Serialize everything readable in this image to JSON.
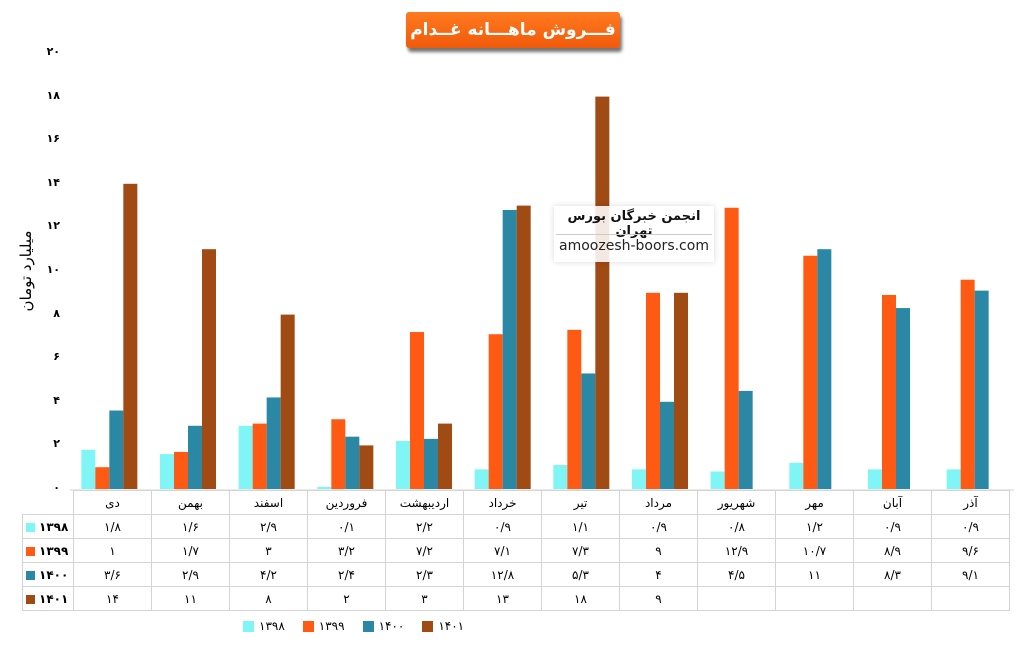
{
  "chart_data": {
    "type": "bar",
    "title": "فـــروش ماهـــانه غــدام",
    "ylabel": "میلیارد تومان",
    "ylim": [
      0,
      20
    ],
    "yticks": [
      "۰",
      "۲",
      "۴",
      "۶",
      "۸",
      "۱۰",
      "۱۲",
      "۱۴",
      "۱۶",
      "۱۸",
      "۲۰"
    ],
    "categories": [
      "دی",
      "بهمن",
      "اسفند",
      "فروردین",
      "اردیبهشت",
      "خرداد",
      "تیر",
      "مرداد",
      "شهریور",
      "مهر",
      "آبان",
      "آذر"
    ],
    "series": [
      {
        "name": "۱۳۹۸",
        "color": "#7ff5f5",
        "values": [
          1.8,
          1.6,
          2.9,
          0.1,
          2.2,
          0.9,
          1.1,
          0.9,
          0.8,
          1.2,
          0.9,
          0.9
        ],
        "labels": [
          "۱/۸",
          "۱/۶",
          "۲/۹",
          "۰/۱",
          "۲/۲",
          "۰/۹",
          "۱/۱",
          "۰/۹",
          "۰/۸",
          "۱/۲",
          "۰/۹",
          "۰/۹"
        ]
      },
      {
        "name": "۱۳۹۹",
        "color": "#ff5a14",
        "values": [
          1,
          1.7,
          3,
          3.2,
          7.2,
          7.1,
          7.3,
          9,
          12.9,
          10.7,
          8.9,
          9.6
        ],
        "labels": [
          "۱",
          "۱/۷",
          "۳",
          "۳/۲",
          "۷/۲",
          "۷/۱",
          "۷/۳",
          "۹",
          "۱۲/۹",
          "۱۰/۷",
          "۸/۹",
          "۹/۶"
        ]
      },
      {
        "name": "۱۴۰۰",
        "color": "#2a88a4",
        "values": [
          3.6,
          2.9,
          4.2,
          2.4,
          2.3,
          12.8,
          5.3,
          4,
          4.5,
          11,
          8.3,
          9.1
        ],
        "labels": [
          "۳/۶",
          "۲/۹",
          "۴/۲",
          "۲/۴",
          "۲/۳",
          "۱۲/۸",
          "۵/۳",
          "۴",
          "۴/۵",
          "۱۱",
          "۸/۳",
          "۹/۱"
        ]
      },
      {
        "name": "۱۴۰۱",
        "color": "#a04a14",
        "values": [
          14,
          11,
          8,
          2,
          3,
          13,
          18,
          9,
          null,
          null,
          null,
          null
        ],
        "labels": [
          "۱۴",
          "۱۱",
          "۸",
          "۲",
          "۳",
          "۱۳",
          "۱۸",
          "۹",
          "",
          "",
          "",
          ""
        ]
      }
    ],
    "grid": false,
    "legend": "bottom"
  },
  "watermark": {
    "line1": "انجمن خبرگان بورس تهران",
    "line2": "amoozesh-boors.com"
  }
}
